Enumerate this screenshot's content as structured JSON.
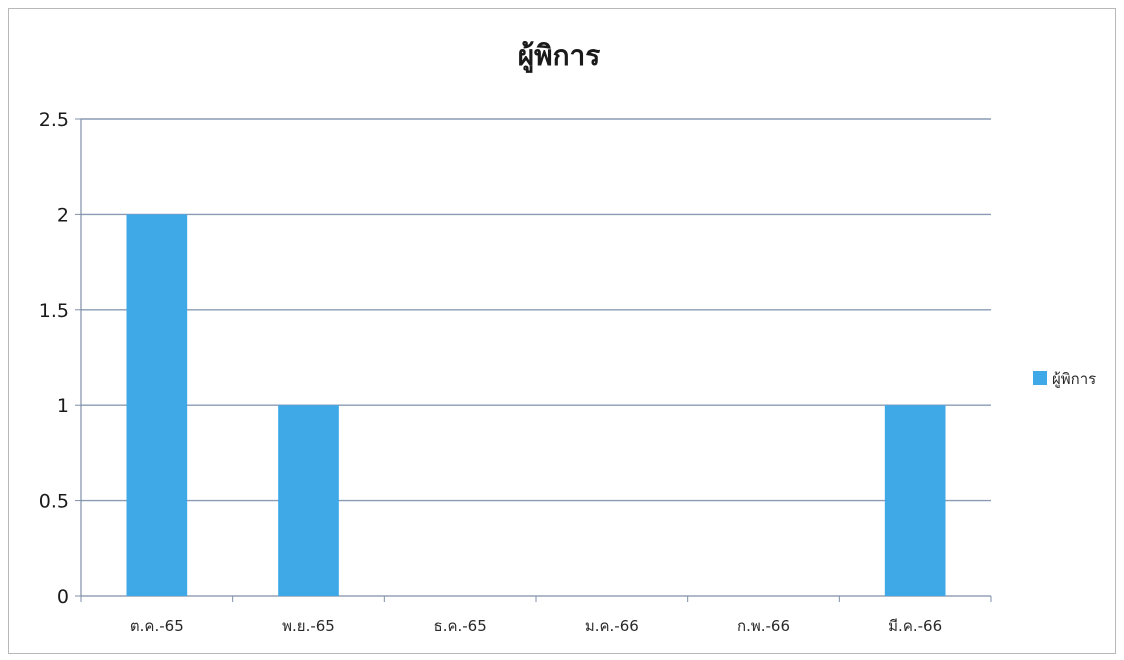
{
  "chart_data": {
    "type": "bar",
    "title": "ผู้พิการ",
    "xlabel": "",
    "ylabel": "",
    "categories": [
      "ต.ค.-65",
      "พ.ย.-65",
      "ธ.ค.-65",
      "ม.ค.-66",
      "ก.พ.-66",
      "มี.ค.-66"
    ],
    "series": [
      {
        "name": "ผู้พิการ",
        "values": [
          2,
          1,
          0,
          0,
          0,
          1
        ]
      }
    ],
    "ylim": [
      0,
      2.5
    ],
    "yticks": [
      "0",
      "0.5",
      "1",
      "1.5",
      "2",
      "2.5"
    ],
    "grid": true,
    "legend_position": "right",
    "colors": {
      "bar": "#3fa9e8",
      "grid": "#8a9bb5",
      "axis": "#7f8fa8"
    }
  }
}
